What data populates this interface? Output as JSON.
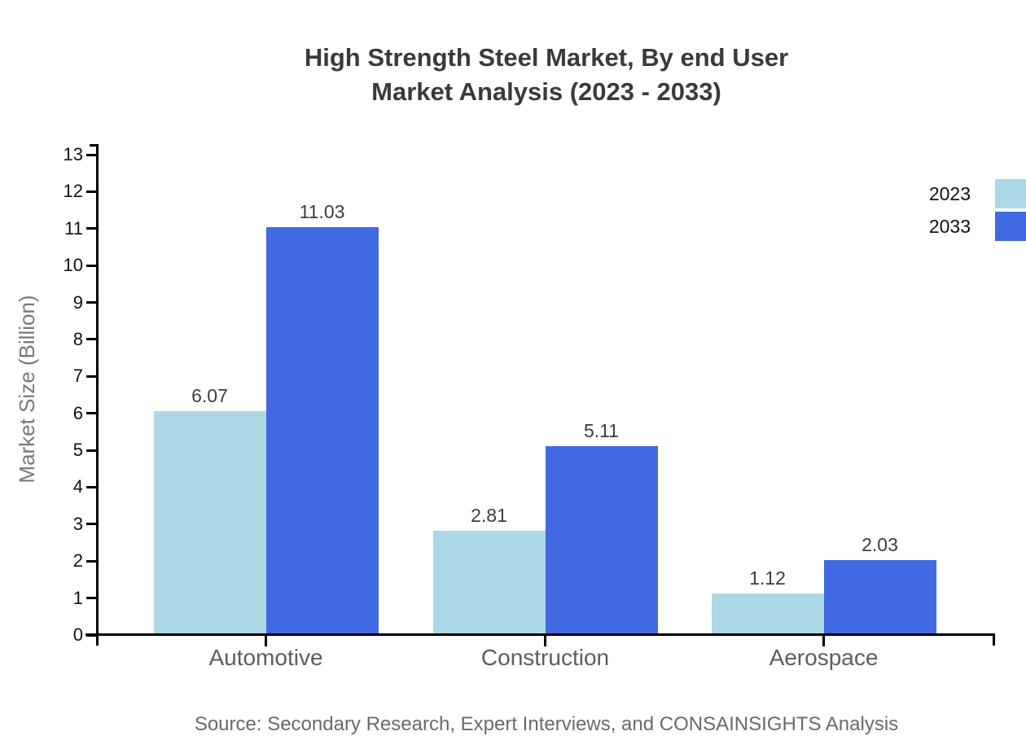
{
  "title": {
    "line1": "High Strength Steel Market, By end User",
    "line2": "Market Analysis (2023 - 2033)"
  },
  "chart_data": {
    "type": "bar",
    "title": "High Strength Steel Market, By end User Market Analysis (2023 - 2033)",
    "categories": [
      "Automotive",
      "Construction",
      "Aerospace"
    ],
    "series": [
      {
        "name": "2023",
        "color": "#ADD8E6",
        "values": [
          6.07,
          2.81,
          1.12
        ]
      },
      {
        "name": "2033",
        "color": "#4169E1",
        "values": [
          11.03,
          5.11,
          2.03
        ]
      }
    ],
    "xlabel": "",
    "ylabel": "Market Size (Billion)",
    "ylim": [
      0,
      13
    ],
    "ytick_step": 1,
    "grid": false,
    "legend_position": "top-right",
    "value_labels_decimals": 2
  },
  "source": "Source: Secondary Research, Expert Interviews, and CONSAINSIGHTS Analysis",
  "colors": {
    "series_2023": "#ADD8E6",
    "series_2033": "#4169E1",
    "axis": "#000000",
    "title_text": "#3a3a3a",
    "value_text": "#3d3d3d",
    "tick_text": "#111111",
    "category_text": "#5d5d5d",
    "ylabel_text": "#777777",
    "source_text": "#6a6a6a",
    "background": "#ffffff"
  }
}
